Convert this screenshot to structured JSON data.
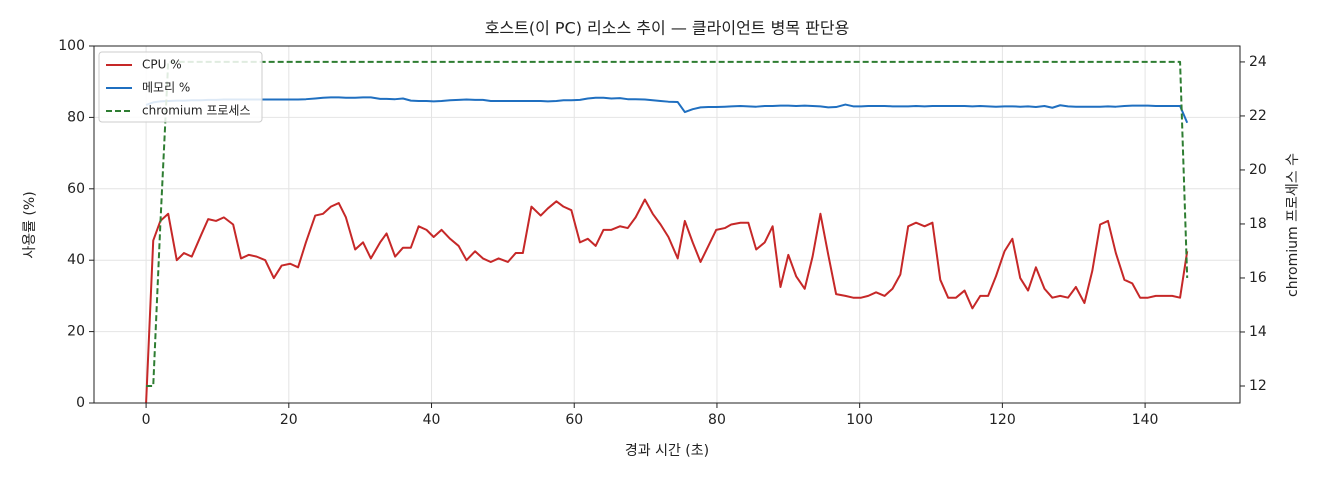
{
  "chart_data": {
    "type": "line",
    "title": "호스트(이 PC) 리소스 추이 — 클라이언트 병목 판단용",
    "x_label": "경과 시간 (초)",
    "y_label": "사용률 (%)",
    "y2_label": "chromium 프로세스 수",
    "x": [
      0,
      1.0,
      2.0,
      3.1,
      4.3,
      5.3,
      6.4,
      7.7,
      8.7,
      9.8,
      10.9,
      12.2,
      13.3,
      14.4,
      15.5,
      16.7,
      17.9,
      19.0,
      20.2,
      21.3,
      22.4,
      23.7,
      24.8,
      25.9,
      27.0,
      28.0,
      29.3,
      30.4,
      31.5,
      32.8,
      33.7,
      34.9,
      36.0,
      37.1,
      38.2,
      39.3,
      40.3,
      41.4,
      42.6,
      43.8,
      44.9,
      46.1,
      47.2,
      48.3,
      49.4,
      50.7,
      51.8,
      52.8,
      54.0,
      55.3,
      56.3,
      57.5,
      58.5,
      59.6,
      60.8,
      61.9,
      63.0,
      64.1,
      65.2,
      66.4,
      67.5,
      68.6,
      69.9,
      71.0,
      72.1,
      73.2,
      74.5,
      75.5,
      76.6,
      77.7,
      78.8,
      79.9,
      81.1,
      82.0,
      83.3,
      84.4,
      85.5,
      86.7,
      87.8,
      88.9,
      90.0,
      91.1,
      92.3,
      93.4,
      94.5,
      95.6,
      96.7,
      98.0,
      99.1,
      100.2,
      101.2,
      102.3,
      103.5,
      104.6,
      105.7,
      106.8,
      107.9,
      109.1,
      110.2,
      111.3,
      112.4,
      113.5,
      114.7,
      115.8,
      116.9,
      118.0,
      119.1,
      120.3,
      121.4,
      122.5,
      123.6,
      124.7,
      125.9,
      127.0,
      128.1,
      129.2,
      130.3,
      131.5,
      132.6,
      133.7,
      134.8,
      135.9,
      137.1,
      138.2,
      139.3,
      140.4,
      141.5,
      142.7,
      143.8,
      144.9,
      145.9
    ],
    "series": [
      {
        "name": "CPU %",
        "color": "#c62828",
        "values": [
          0,
          45.5,
          51,
          53,
          40,
          42,
          41,
          47,
          51.5,
          51,
          52,
          50,
          40.5,
          41.5,
          41,
          40,
          35,
          38.5,
          39,
          38,
          45,
          52.5,
          53,
          55,
          56,
          52,
          43,
          45,
          40.5,
          45,
          47.5,
          41,
          43.5,
          43.5,
          49.5,
          48.5,
          46.5,
          48.5,
          46,
          44,
          40,
          42.5,
          40.5,
          39.5,
          40.5,
          39.5,
          42,
          42,
          55,
          52.5,
          54.5,
          56.5,
          55,
          54,
          45,
          46,
          44,
          48.5,
          48.5,
          49.5,
          49,
          52,
          57,
          53,
          50,
          46.5,
          40.5,
          51,
          45,
          39.5,
          44,
          48.5,
          49,
          50,
          50.5,
          50.5,
          43,
          45,
          49.5,
          32.5,
          41.5,
          35.5,
          32,
          41,
          53,
          41.5,
          30.5,
          30,
          29.5,
          29.5,
          30,
          31,
          30,
          32,
          36,
          49.5,
          50.5,
          49.5,
          50.5,
          34.5,
          29.5,
          29.5,
          31.5,
          26.5,
          30,
          30,
          35.5,
          42.5,
          46,
          35,
          31.5,
          38,
          32,
          29.5,
          30,
          29.5,
          32.5,
          28,
          37,
          50,
          51,
          42,
          34.5,
          33.5,
          29.5,
          29.5,
          30,
          30,
          30,
          29.5,
          42.5
        ]
      },
      {
        "name": "메모리 %",
        "color": "#1f6fc0",
        "values": [
          83.5,
          84.2,
          84.5,
          84.6,
          84.7,
          84.7,
          84.8,
          84.8,
          84.9,
          84.9,
          85,
          85,
          85,
          85,
          85,
          85,
          85,
          85,
          85,
          85,
          85.1,
          85.3,
          85.5,
          85.6,
          85.6,
          85.5,
          85.5,
          85.6,
          85.6,
          85.2,
          85.2,
          85.1,
          85.3,
          84.7,
          84.6,
          84.6,
          84.5,
          84.6,
          84.8,
          84.9,
          85,
          84.9,
          84.9,
          84.6,
          84.6,
          84.6,
          84.6,
          84.6,
          84.6,
          84.6,
          84.5,
          84.6,
          84.8,
          84.8,
          84.9,
          85.3,
          85.5,
          85.5,
          85.3,
          85.4,
          85.1,
          85.1,
          85,
          84.8,
          84.6,
          84.4,
          84.3,
          81.5,
          82.3,
          82.8,
          82.9,
          82.9,
          83,
          83.1,
          83.2,
          83.1,
          83,
          83.2,
          83.2,
          83.3,
          83.3,
          83.2,
          83.3,
          83.2,
          83.1,
          82.8,
          82.9,
          83.6,
          83.1,
          83.1,
          83.2,
          83.2,
          83.2,
          83.1,
          83.1,
          83.1,
          83.2,
          83.1,
          83.2,
          83.2,
          83.2,
          83.2,
          83.2,
          83.1,
          83.2,
          83.1,
          83,
          83.1,
          83.1,
          83,
          83.1,
          82.9,
          83.2,
          82.7,
          83.4,
          83.1,
          83,
          83,
          83,
          83,
          83.1,
          83,
          83.2,
          83.3,
          83.3,
          83.3,
          83.2,
          83.2,
          83.2,
          83.2,
          78.5
        ]
      },
      {
        "name": "chromium 프로세스",
        "color": "#2e7d32",
        "linestyle": "dashed",
        "axis": "y2",
        "values": [
          12,
          12,
          18,
          24,
          24,
          24,
          24,
          24,
          24,
          24,
          24,
          24,
          24,
          24,
          24,
          24,
          24,
          24,
          24,
          24,
          24,
          24,
          24,
          24,
          24,
          24,
          24,
          24,
          24,
          24,
          24,
          24,
          24,
          24,
          24,
          24,
          24,
          24,
          24,
          24,
          24,
          24,
          24,
          24,
          24,
          24,
          24,
          24,
          24,
          24,
          24,
          24,
          24,
          24,
          24,
          24,
          24,
          24,
          24,
          24,
          24,
          24,
          24,
          24,
          24,
          24,
          24,
          24,
          24,
          24,
          24,
          24,
          24,
          24,
          24,
          24,
          24,
          24,
          24,
          24,
          24,
          24,
          24,
          24,
          24,
          24,
          24,
          24,
          24,
          24,
          24,
          24,
          24,
          24,
          24,
          24,
          24,
          24,
          24,
          24,
          24,
          24,
          24,
          24,
          24,
          24,
          24,
          24,
          24,
          24,
          24,
          24,
          24,
          24,
          24,
          24,
          24,
          24,
          24,
          24,
          24,
          24,
          24,
          24,
          24,
          24,
          24,
          24,
          24,
          24,
          16
        ]
      }
    ],
    "xlim": [
      -7.3,
      153.3
    ],
    "xticks": [
      0,
      20,
      40,
      60,
      80,
      100,
      120,
      140
    ],
    "ylim": [
      0,
      100
    ],
    "yticks": [
      0,
      20,
      40,
      60,
      80,
      100
    ],
    "y2lim": [
      11.37,
      24.59
    ],
    "y2ticks": [
      12,
      14,
      16,
      18,
      20,
      22,
      24
    ],
    "grid": true,
    "legend": "upper-left"
  }
}
